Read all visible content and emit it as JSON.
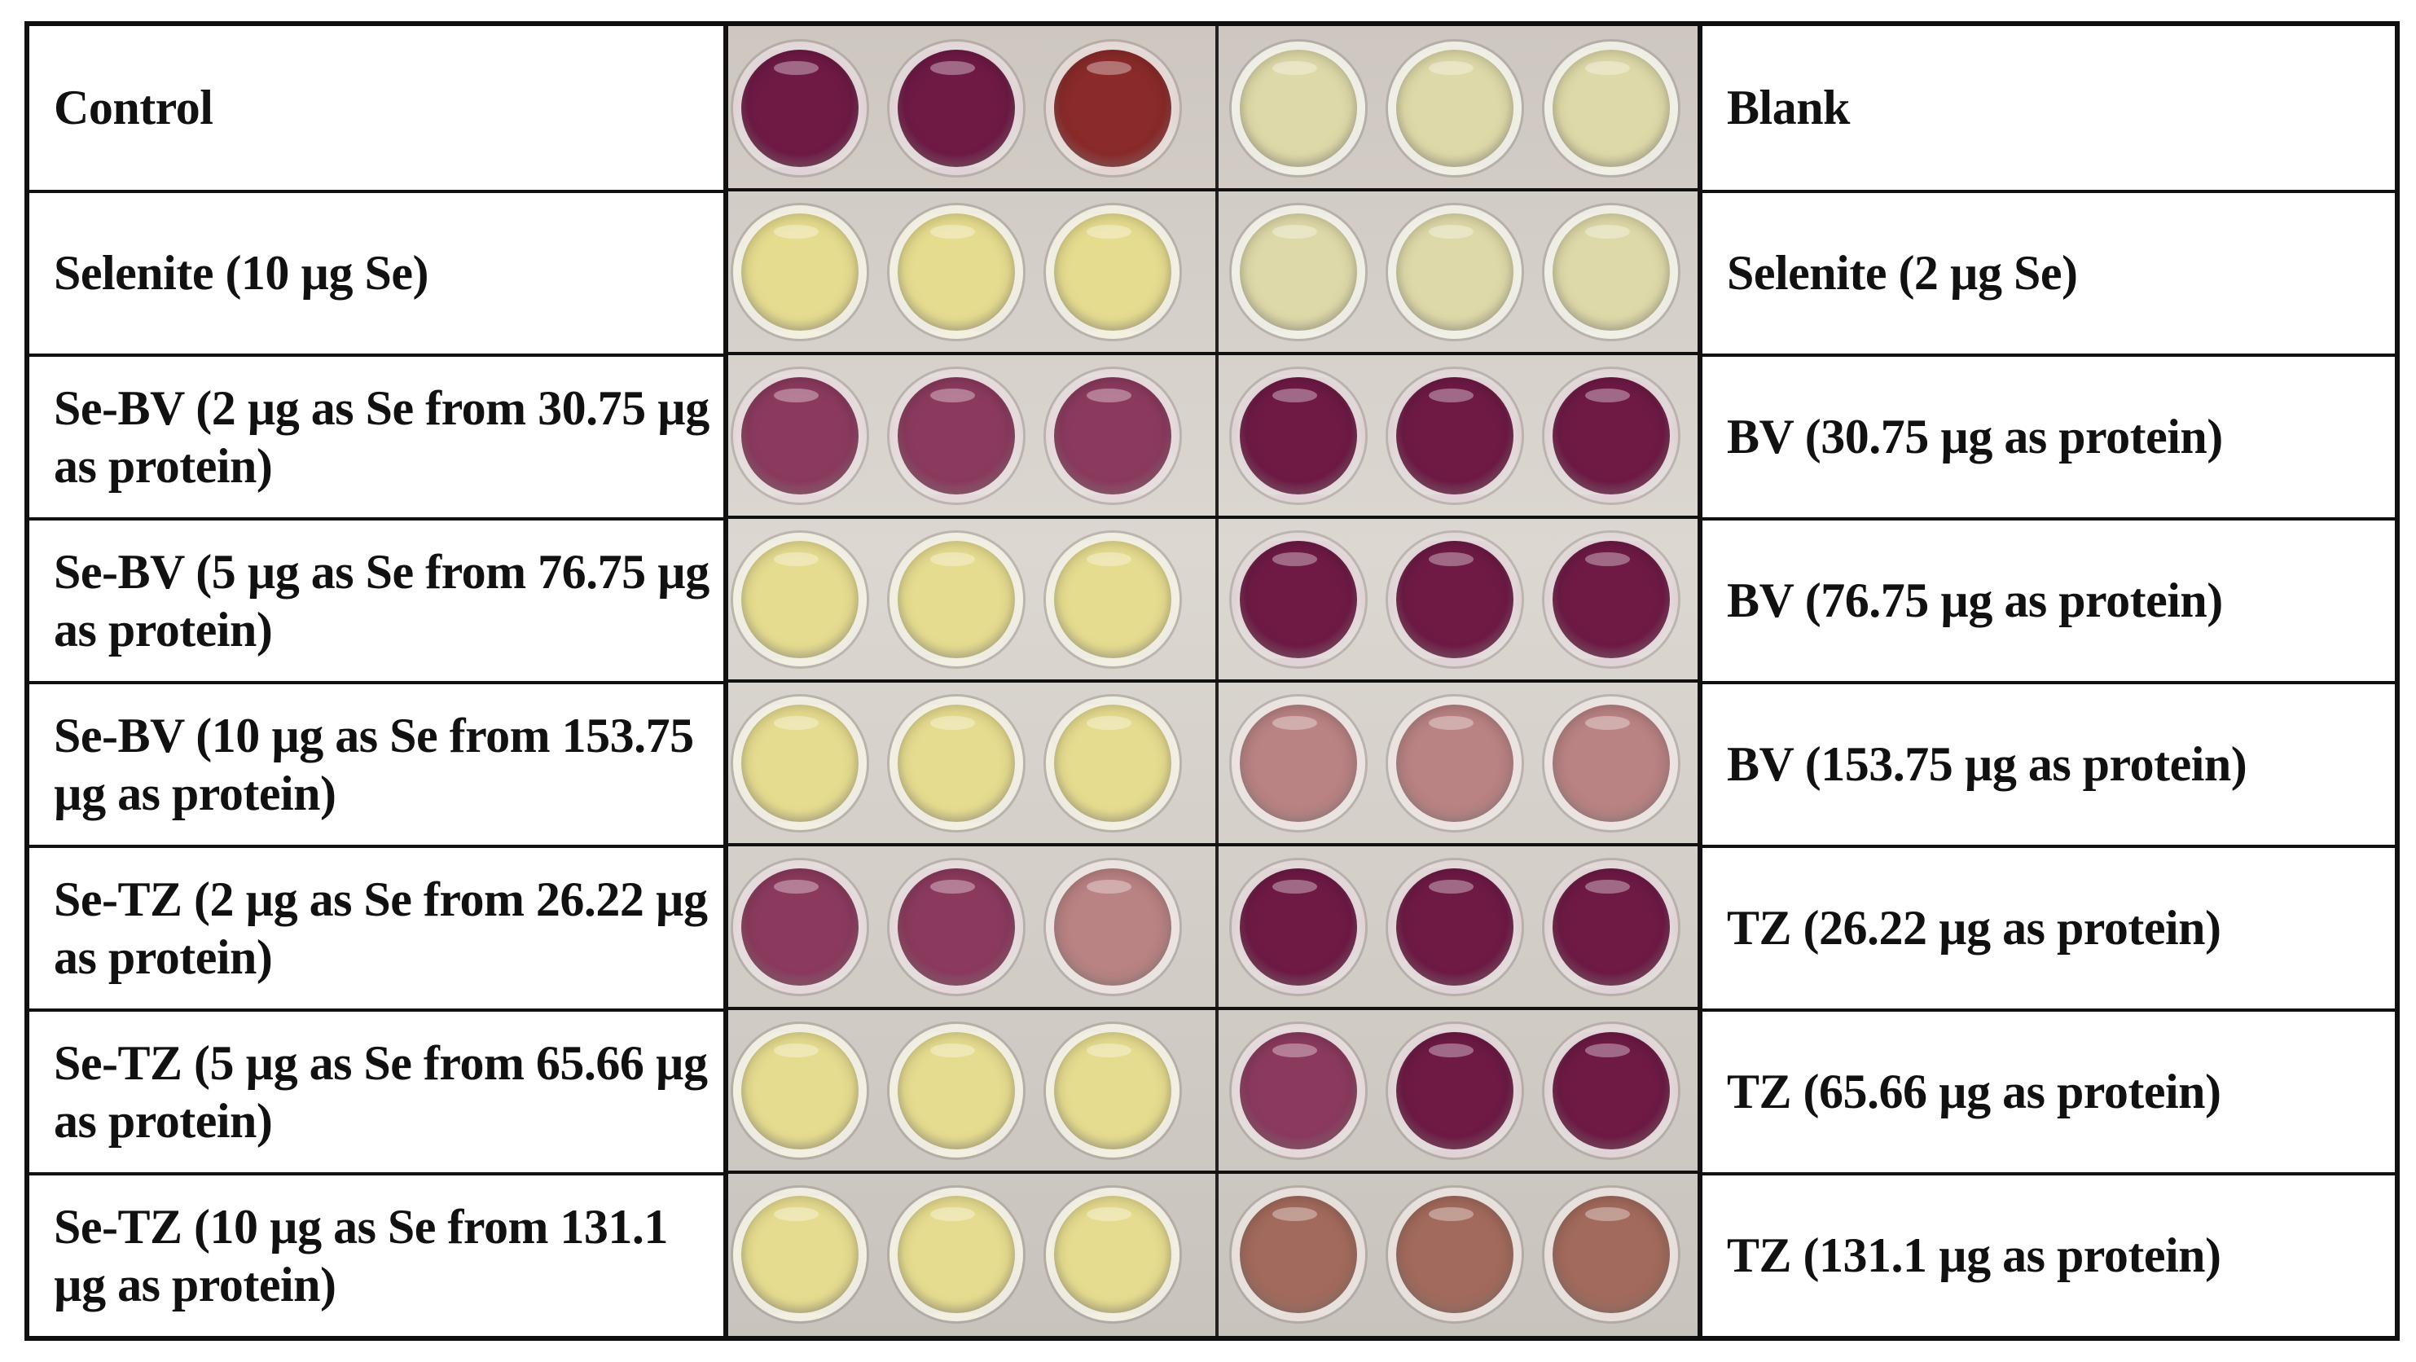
{
  "rows": [
    {
      "left": "Control",
      "right": "Blank"
    },
    {
      "left": "Selenite (10 µg Se)",
      "right": "Selenite (2 µg Se)"
    },
    {
      "left": "Se-BV (2 µg as Se from 30.75 µg as protein)",
      "right": "BV (30.75 µg as protein)"
    },
    {
      "left": "Se-BV (5 µg as Se from 76.75 µg as protein)",
      "right": "BV (76.75 µg as protein)"
    },
    {
      "left": "Se-BV (10 µg as Se from 153.75 µg as protein)",
      "right": "BV (153.75 µg as protein)"
    },
    {
      "left": "Se-TZ (2 µg as Se from 26.22 µg as protein)",
      "right": "TZ (26.22 µg as protein)"
    },
    {
      "left": "Se-TZ (5 µg as Se from  65.66 µg as protein)",
      "right": "TZ (65.66 µg as protein)"
    },
    {
      "left": "Se-TZ (10 µg as Se from 131.1 µg as protein)",
      "right": "TZ (131.1 µg as protein)"
    }
  ],
  "colors": {
    "purple": "#6e1a45",
    "purple_light": "#8b3a5e",
    "pink_pale": "#b98283",
    "brown_pink": "#a26a5c",
    "red_brown": "#8a2a2a",
    "yellow": "#e6dc8f",
    "yellow_pale": "#ded9a8"
  },
  "wells": [
    [
      "purple",
      "purple",
      "red_brown",
      "yellow_pale",
      "yellow_pale",
      "yellow_pale"
    ],
    [
      "yellow",
      "yellow",
      "yellow",
      "yellow_pale",
      "yellow_pale",
      "yellow_pale"
    ],
    [
      "purple_light",
      "purple_light",
      "purple_light",
      "purple",
      "purple",
      "purple"
    ],
    [
      "yellow",
      "yellow",
      "yellow",
      "purple",
      "purple",
      "purple"
    ],
    [
      "yellow",
      "yellow",
      "yellow",
      "pink_pale",
      "pink_pale",
      "pink_pale"
    ],
    [
      "purple_light",
      "purple_light",
      "pink_pale",
      "purple",
      "purple",
      "purple"
    ],
    [
      "yellow",
      "yellow",
      "yellow",
      "purple_light",
      "purple",
      "purple"
    ],
    [
      "yellow",
      "yellow",
      "yellow",
      "brown_pink",
      "brown_pink",
      "brown_pink"
    ]
  ]
}
